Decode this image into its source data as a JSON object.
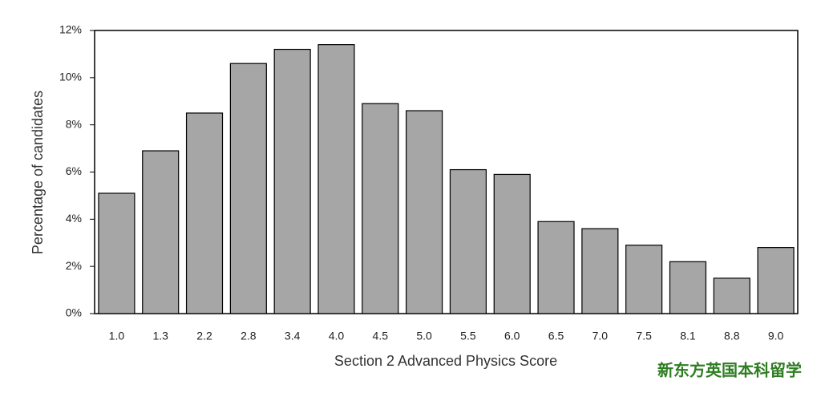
{
  "chart_data": {
    "type": "bar",
    "x_label": "Section 2 Advanced Physics Score",
    "y_label": "Percentage of candidates",
    "categories": [
      "1.0",
      "1.3",
      "2.2",
      "2.8",
      "3.4",
      "4.0",
      "4.5",
      "5.0",
      "5.5",
      "6.0",
      "6.5",
      "7.0",
      "7.5",
      "8.1",
      "8.8",
      "9.0"
    ],
    "values": [
      5.1,
      6.9,
      8.5,
      10.6,
      11.2,
      11.4,
      8.9,
      8.6,
      6.1,
      5.9,
      3.9,
      3.6,
      2.9,
      2.2,
      1.5,
      2.8
    ],
    "color": "#a6a6a6",
    "ylim": [
      0,
      12
    ],
    "yticks": [
      {
        "value": 0,
        "label": "0%"
      },
      {
        "value": 2,
        "label": "2%"
      },
      {
        "value": 4,
        "label": "4%"
      },
      {
        "value": 6,
        "label": "6%"
      },
      {
        "value": 8,
        "label": "8%"
      },
      {
        "value": 10,
        "label": "10%"
      },
      {
        "value": 12,
        "label": "12%"
      }
    ],
    "grid": false
  },
  "watermark": "新东方英国本科留学"
}
